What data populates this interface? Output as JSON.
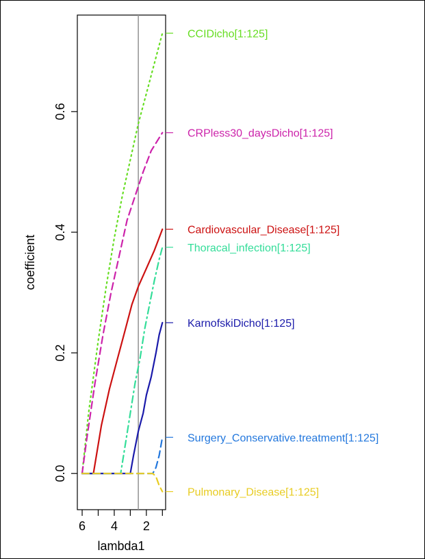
{
  "chart_data": {
    "type": "line",
    "xlabel": "lambda1",
    "ylabel": "coefficient",
    "xlim": [
      6.3,
      0.8
    ],
    "ylim": [
      -0.06,
      0.76
    ],
    "x_ticks": [
      6,
      4,
      2
    ],
    "x_tick_labels": [
      "6",
      "4",
      "2"
    ],
    "y_ticks": [
      0.0,
      0.2,
      0.4,
      0.6
    ],
    "y_tick_labels": [
      "0.0",
      "0.2",
      "0.4",
      "0.6"
    ],
    "vline_x": 2.5,
    "grid": false,
    "legend": "labels at right end of lines",
    "series": [
      {
        "name": "CCIDicho[1:125]",
        "color": "#66dd22",
        "dash": "dotted",
        "x": [
          6.0,
          5.6,
          5.0,
          4.5,
          4.0,
          3.5,
          3.0,
          2.5,
          2.0,
          1.5,
          1.0
        ],
        "y": [
          0.0,
          0.1,
          0.22,
          0.31,
          0.39,
          0.46,
          0.52,
          0.58,
          0.63,
          0.68,
          0.73
        ]
      },
      {
        "name": "CRPless30_daysDicho[1:125]",
        "color": "#cc22aa",
        "dash": "dashed",
        "x": [
          6.0,
          5.7,
          5.2,
          4.7,
          4.2,
          3.7,
          3.2,
          2.7,
          2.2,
          1.7,
          1.0
        ],
        "y": [
          0.0,
          0.06,
          0.15,
          0.23,
          0.3,
          0.36,
          0.42,
          0.46,
          0.5,
          0.535,
          0.565
        ]
      },
      {
        "name": "Cardiovascular_Disease[1:125]",
        "color": "#cc1111",
        "dash": "solid",
        "x": [
          6.0,
          5.3,
          4.8,
          4.3,
          3.8,
          3.3,
          2.9,
          2.5,
          2.0,
          1.5,
          1.0
        ],
        "y": [
          0.0,
          0.0,
          0.08,
          0.14,
          0.19,
          0.24,
          0.28,
          0.31,
          0.34,
          0.37,
          0.405
        ]
      },
      {
        "name": "Thoracal_infection[1:125]",
        "color": "#33dd99",
        "dash": "dashdot",
        "x": [
          6.0,
          3.6,
          3.3,
          3.0,
          2.7,
          2.4,
          2.1,
          1.8,
          1.5,
          1.2,
          1.0
        ],
        "y": [
          0.0,
          0.0,
          0.05,
          0.1,
          0.15,
          0.19,
          0.24,
          0.28,
          0.32,
          0.355,
          0.375
        ]
      },
      {
        "name": "KarnofskiDicho[1:125]",
        "color": "#1a1aaa",
        "dash": "solid",
        "x": [
          6.0,
          3.0,
          2.8,
          2.5,
          2.2,
          2.0,
          1.7,
          1.4,
          1.2,
          1.0
        ],
        "y": [
          0.0,
          0.0,
          0.03,
          0.07,
          0.1,
          0.13,
          0.16,
          0.2,
          0.23,
          0.25
        ]
      },
      {
        "name": "Surgery_Conservative.treatment[1:125]",
        "color": "#2277dd",
        "dash": "dashed",
        "x": [
          6.0,
          1.6,
          1.4,
          1.2,
          1.0
        ],
        "y": [
          0.0,
          0.0,
          0.01,
          0.03,
          0.06
        ]
      },
      {
        "name": "Pulmonary_Disease[1:125]",
        "color": "#e8cc22",
        "dash": "dashed",
        "x": [
          6.0,
          1.6,
          1.4,
          1.2,
          1.0
        ],
        "y": [
          0.0,
          0.0,
          -0.005,
          -0.02,
          -0.03
        ]
      }
    ]
  }
}
